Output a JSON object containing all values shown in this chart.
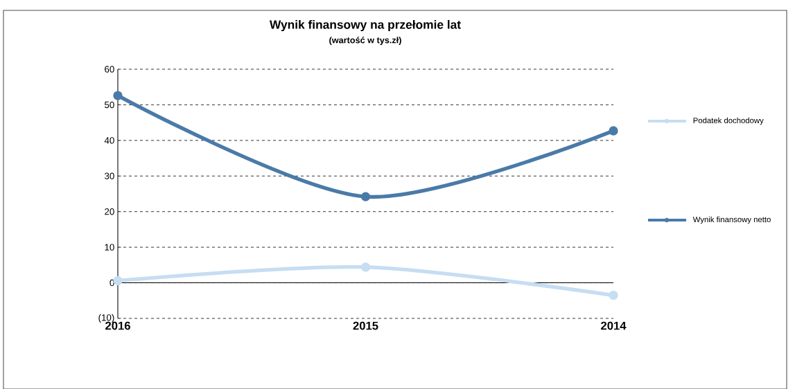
{
  "chart_data": {
    "type": "line",
    "title": "Wynik finansowy na przełomie lat",
    "subtitle": "(wartość w tys.zł)",
    "categories": [
      "2016",
      "2015",
      "2014"
    ],
    "series": [
      {
        "name": "Podatek dochodowy",
        "color": "#c6ddf2",
        "values": [
          0.6,
          4.4,
          -3.5
        ]
      },
      {
        "name": "Wynik finansowy netto",
        "color": "#4a7aa8",
        "values": [
          52.6,
          24.2,
          42.7
        ]
      }
    ],
    "ylim": [
      -10,
      60
    ],
    "yticks": [
      {
        "value": -10,
        "label": "(10)"
      },
      0,
      10,
      20,
      30,
      40,
      50,
      60
    ],
    "grid": "y",
    "legend": "right",
    "marker": "circle",
    "line_style": "solid"
  }
}
